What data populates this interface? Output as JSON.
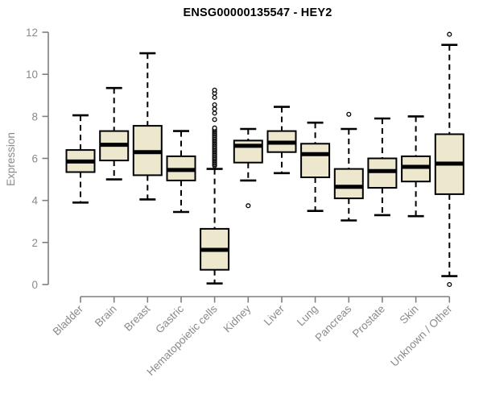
{
  "chart_data": {
    "type": "boxplot",
    "title": "ENSG00000135547 - HEY2",
    "ylabel": "Expression",
    "xlabel": "",
    "ylim": [
      0,
      12
    ],
    "yticks": [
      0,
      2,
      4,
      6,
      8,
      10,
      12
    ],
    "grid": false,
    "legend": false,
    "categories": [
      "Bladder",
      "Brain",
      "Breast",
      "Gastric",
      "Hematopoietic cells",
      "Kidney",
      "Liver",
      "Lung",
      "Pancreas",
      "Prostate",
      "Skin",
      "Unknown / Other"
    ],
    "boxes": [
      {
        "category": "Bladder",
        "whisker_low": 3.9,
        "q1": 5.35,
        "median": 5.85,
        "q3": 6.4,
        "whisker_high": 8.05,
        "outliers": []
      },
      {
        "category": "Brain",
        "whisker_low": 5.0,
        "q1": 5.9,
        "median": 6.65,
        "q3": 7.3,
        "whisker_high": 9.35,
        "outliers": []
      },
      {
        "category": "Breast",
        "whisker_low": 4.05,
        "q1": 5.2,
        "median": 6.3,
        "q3": 7.55,
        "whisker_high": 11.0,
        "outliers": []
      },
      {
        "category": "Gastric",
        "whisker_low": 3.45,
        "q1": 4.95,
        "median": 5.45,
        "q3": 6.1,
        "whisker_high": 7.3,
        "outliers": []
      },
      {
        "category": "Hematopoietic cells",
        "whisker_low": 0.05,
        "q1": 0.7,
        "median": 1.65,
        "q3": 2.65,
        "whisker_high": 5.5,
        "outliers": [
          5.65,
          5.71,
          5.77,
          5.83,
          5.89,
          5.95,
          6.01,
          6.07,
          6.13,
          6.19,
          6.25,
          6.31,
          6.37,
          6.43,
          6.49,
          6.55,
          6.61,
          6.67,
          6.73,
          6.79,
          6.85,
          6.91,
          6.97,
          7.03,
          7.09,
          7.15,
          7.21,
          7.27,
          7.33,
          7.39,
          7.45,
          7.85,
          8.15,
          8.35,
          8.55,
          8.9,
          9.1,
          9.25
        ]
      },
      {
        "category": "Kidney",
        "whisker_low": 4.95,
        "q1": 5.8,
        "median": 6.6,
        "q3": 6.85,
        "whisker_high": 7.4,
        "outliers": [
          3.75
        ]
      },
      {
        "category": "Liver",
        "whisker_low": 5.3,
        "q1": 6.3,
        "median": 6.75,
        "q3": 7.3,
        "whisker_high": 8.45,
        "outliers": []
      },
      {
        "category": "Lung",
        "whisker_low": 3.5,
        "q1": 5.1,
        "median": 6.2,
        "q3": 6.7,
        "whisker_high": 7.7,
        "outliers": []
      },
      {
        "category": "Pancreas",
        "whisker_low": 3.05,
        "q1": 4.1,
        "median": 4.65,
        "q3": 5.5,
        "whisker_high": 7.4,
        "outliers": [
          8.1
        ]
      },
      {
        "category": "Prostate",
        "whisker_low": 3.3,
        "q1": 4.6,
        "median": 5.4,
        "q3": 6.0,
        "whisker_high": 7.9,
        "outliers": []
      },
      {
        "category": "Skin",
        "whisker_low": 3.25,
        "q1": 4.9,
        "median": 5.6,
        "q3": 6.1,
        "whisker_high": 8.0,
        "outliers": []
      },
      {
        "category": "Unknown / Other",
        "whisker_low": 0.4,
        "q1": 4.3,
        "median": 5.75,
        "q3": 7.15,
        "whisker_high": 11.4,
        "outliers": [
          11.9,
          0.0
        ]
      }
    ],
    "colors": {
      "box_fill": "#EDE7CD",
      "box_stroke": "#000000",
      "median": "#000000",
      "axis": "#7F7F7F",
      "tick_label": "#8A8A8A",
      "title": "#000000",
      "background": "#FFFFFF"
    }
  }
}
